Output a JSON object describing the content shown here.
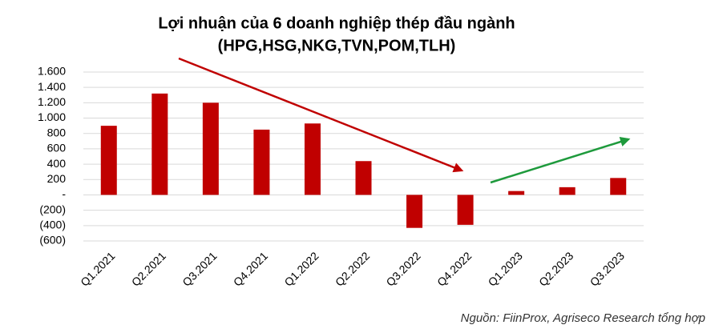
{
  "chart_data": {
    "type": "bar",
    "title": "Lợi nhuận của 6 doanh nghiệp thép đầu ngành",
    "subtitle": "(HPG,HSG,NKG,TVN,POM,TLH)",
    "source": "Nguồn: FiinProx, Agriseco Research tổng hợp",
    "categories": [
      "Q1.2021",
      "Q2.2021",
      "Q3.2021",
      "Q4.2021",
      "Q1.2022",
      "Q2.2022",
      "Q3.2022",
      "Q4.2022",
      "Q1.2023",
      "Q2.2023",
      "Q3.2023"
    ],
    "values": [
      900,
      1320,
      1200,
      850,
      930,
      440,
      -430,
      -390,
      50,
      100,
      220
    ],
    "color": "#c00000",
    "ylim": [
      -600,
      1600
    ],
    "yticks": [
      {
        "value": -600,
        "label": "(600)"
      },
      {
        "value": -400,
        "label": "(400)"
      },
      {
        "value": -200,
        "label": "(200)"
      },
      {
        "value": 0,
        "label": "-"
      },
      200,
      400,
      600,
      800,
      {
        "value": 1000,
        "label": "1.000"
      },
      {
        "value": 1200,
        "label": "1.200"
      },
      {
        "value": 1400,
        "label": "1.400"
      },
      {
        "value": 1600,
        "label": "1.600"
      }
    ],
    "grid": true
  }
}
